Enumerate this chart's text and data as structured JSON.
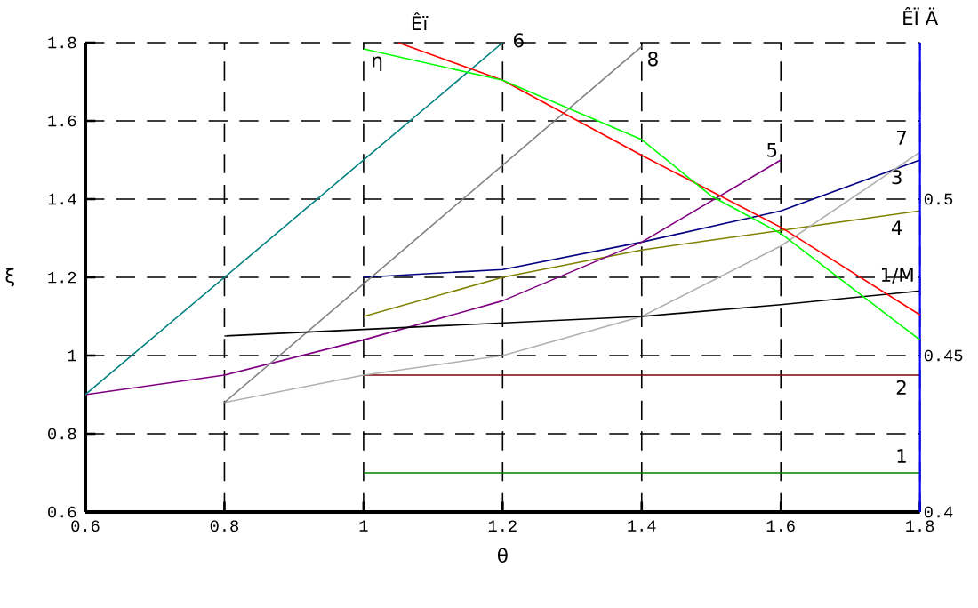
{
  "chart_data": {
    "type": "line",
    "xlabel": "θ",
    "ylabel": "ξ",
    "y2label": "ÊÏ Ä",
    "grid": true,
    "legend": false,
    "line_style": "solid",
    "marker": "none",
    "xlim": [
      0.6,
      1.8
    ],
    "xticks": [
      0.6,
      0.8,
      1,
      1.2,
      1.4,
      1.6,
      1.8
    ],
    "ylim": [
      0.6,
      1.8
    ],
    "yticks": [
      0.6,
      0.8,
      1,
      1.2,
      1.4,
      1.6,
      1.8
    ],
    "y2lim": [
      0.4,
      0.55
    ],
    "y2ticks": [
      0.4,
      0.45,
      0.5
    ],
    "series": [
      {
        "name": "1",
        "color": "#008000",
        "x": [
          1.0,
          1.8
        ],
        "values": [
          0.7,
          0.7
        ]
      },
      {
        "name": "2",
        "color": "#800000",
        "x": [
          1.0,
          1.8
        ],
        "values": [
          0.95,
          0.95
        ]
      },
      {
        "name": "3",
        "color": "#000080",
        "x": [
          1.0,
          1.2,
          1.4,
          1.6,
          1.8
        ],
        "values": [
          1.2,
          1.22,
          1.29,
          1.37,
          1.5
        ]
      },
      {
        "name": "4",
        "color": "#808000",
        "x": [
          1.0,
          1.2,
          1.4,
          1.6,
          1.8
        ],
        "values": [
          1.1,
          1.2,
          1.27,
          1.32,
          1.37
        ]
      },
      {
        "name": "5",
        "color": "#800080",
        "x": [
          0.6,
          0.8,
          1.0,
          1.2,
          1.4,
          1.6
        ],
        "values": [
          0.9,
          0.95,
          1.04,
          1.14,
          1.29,
          1.5
        ]
      },
      {
        "name": "6",
        "color": "#008080",
        "x": [
          0.6,
          1.2
        ],
        "values": [
          0.9,
          1.8
        ]
      },
      {
        "name": "7",
        "color": "#b0b0b0",
        "x": [
          0.8,
          1.0,
          1.2,
          1.4,
          1.6,
          1.8
        ],
        "values": [
          0.88,
          0.95,
          1.0,
          1.1,
          1.28,
          1.52
        ]
      },
      {
        "name": "8",
        "color": "#808080",
        "x": [
          0.8,
          1.4
        ],
        "values": [
          0.88,
          1.79
        ]
      },
      {
        "name": "1/M",
        "color": "#000000",
        "x": [
          0.8,
          1.4,
          1.6,
          1.8
        ],
        "values": [
          1.05,
          1.1,
          1.13,
          1.165
        ]
      },
      {
        "name": "Êï",
        "color": "#ff0000",
        "axis": "y2",
        "x": [
          1.05,
          1.2,
          1.4,
          1.6,
          1.8
        ],
        "values": [
          0.55,
          0.538,
          0.514,
          0.491,
          0.463
        ]
      },
      {
        "name": "η",
        "color": "#00ff00",
        "axis": "y2",
        "x": [
          1.0,
          1.2,
          1.4,
          1.5,
          1.6,
          1.8
        ],
        "values": [
          0.548,
          0.538,
          0.519,
          0.501,
          0.489,
          0.455
        ]
      }
    ]
  }
}
